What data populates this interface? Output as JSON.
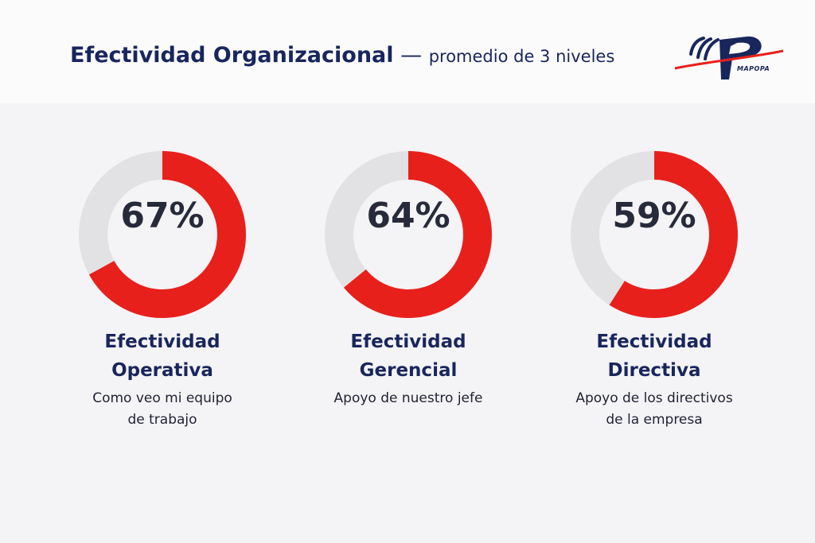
{
  "header": {
    "title_main": "Efectividad Organizacional",
    "title_dash": " — ",
    "title_sub": "promedio de 3 niveles",
    "logo_text": "MAPOPA"
  },
  "colors": {
    "accent": "#e8201c",
    "track": "#e2e1e4",
    "title": "#18265c",
    "text": "#262a3a",
    "background": "#f4f3f5"
  },
  "chart_data": {
    "type": "donut",
    "max": 100,
    "series": [
      {
        "value": 67,
        "label": "67%",
        "title_line1": "Efectividad",
        "title_line2": "Operativa",
        "caption_line1": "Como veo mi equipo",
        "caption_line2": "de trabajo"
      },
      {
        "value": 64,
        "label": "64%",
        "title_line1": "Efectividad",
        "title_line2": "Gerencial",
        "caption_line1": "Apoyo de nuestro jefe",
        "caption_line2": ""
      },
      {
        "value": 59,
        "label": "59%",
        "title_line1": "Efectividad",
        "title_line2": "Directiva",
        "caption_line1": "Apoyo de los directivos",
        "caption_line2": "de la empresa"
      }
    ]
  }
}
